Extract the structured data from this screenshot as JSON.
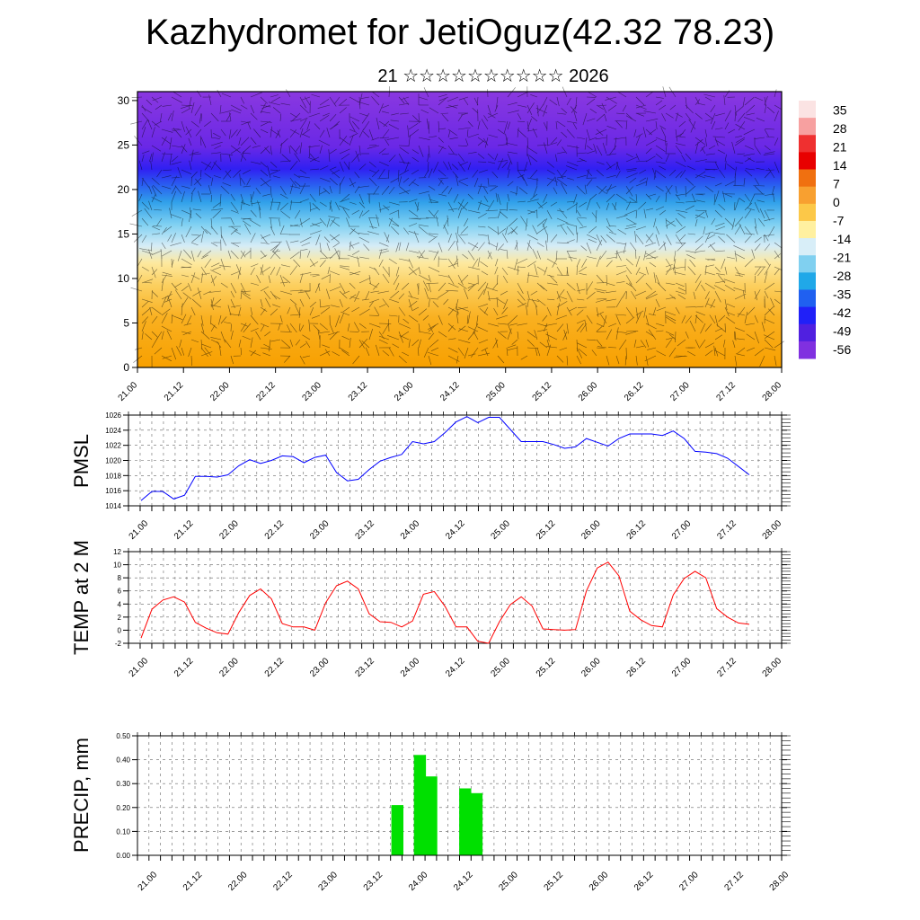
{
  "page": {
    "title": "Kazhydromet for JetiOguz(42.32 78.23)",
    "subtitle": "21 ☆☆☆☆☆☆☆☆☆☆ 2026"
  },
  "chart_data": [
    {
      "type": "heatmap",
      "xlabel": "",
      "ylabel": "",
      "x_tick_labels": [
        "21.00",
        "21.12",
        "22.00",
        "22.12",
        "23.00",
        "23.12",
        "24.00",
        "24.12",
        "25.00",
        "25.12",
        "26.00",
        "26.12",
        "27.00",
        "27.12",
        "28.00"
      ],
      "ylim": [
        0,
        31
      ],
      "y_ticks": [
        0,
        5,
        10,
        15,
        20,
        25,
        30
      ],
      "colorbar": {
        "labels": [
          "35",
          "28",
          "21",
          "14",
          "7",
          "0",
          "-7",
          "-14",
          "-21",
          "-28",
          "-35",
          "-42",
          "-49",
          "-56"
        ],
        "colors": [
          "#fbe3e3",
          "#f7a0a0",
          "#ef3030",
          "#e80000",
          "#f07010",
          "#f8a030",
          "#fcc848",
          "#fff0a0",
          "#d8eef8",
          "#80d0f0",
          "#20a8e8",
          "#2060f0",
          "#2020f8",
          "#5020e0",
          "#8030e0"
        ]
      }
    },
    {
      "type": "line",
      "ylabel": "PMSL",
      "ylim": [
        1014,
        1026
      ],
      "y_ticks": [
        1014,
        1016,
        1018,
        1020,
        1022,
        1024,
        1026
      ],
      "color": "#0000ff",
      "x_tick_labels": [
        "21.00",
        "21.12",
        "22.00",
        "22.12",
        "23.00",
        "23.12",
        "24.00",
        "24.12",
        "25.00",
        "25.12",
        "26.00",
        "26.12",
        "27.00",
        "27.12",
        "28.00"
      ],
      "values": [
        1014.7,
        1015.9,
        1015.9,
        1014.9,
        1015.4,
        1017.9,
        1017.9,
        1017.8,
        1018.1,
        1019.3,
        1020.1,
        1019.6,
        1020.0,
        1020.6,
        1020.5,
        1019.7,
        1020.4,
        1020.7,
        1018.4,
        1017.3,
        1017.5,
        1018.8,
        1019.9,
        1020.4,
        1020.8,
        1022.5,
        1022.2,
        1022.5,
        1023.7,
        1025.1,
        1025.8,
        1025.0,
        1025.7,
        1025.7,
        1024.1,
        1022.5,
        1022.5,
        1022.5,
        1022.1,
        1021.6,
        1021.8,
        1022.9,
        1022.4,
        1021.9,
        1022.9,
        1023.5,
        1023.5,
        1023.5,
        1023.3,
        1023.9,
        1022.9,
        1021.2,
        1021.1,
        1020.9,
        1020.3,
        1019.2,
        1018.1
      ]
    },
    {
      "type": "line",
      "ylabel": "TEMP at 2 M",
      "ylim": [
        -2,
        12
      ],
      "y_ticks": [
        -2,
        0,
        2,
        4,
        6,
        8,
        10,
        12
      ],
      "color": "#ff0000",
      "x_tick_labels": [
        "21.00",
        "21.12",
        "22.00",
        "22.12",
        "23.00",
        "23.12",
        "24.00",
        "24.12",
        "25.00",
        "25.12",
        "26.00",
        "26.12",
        "27.00",
        "27.12",
        "28.00"
      ],
      "values": [
        -1.2,
        3.2,
        4.6,
        5.1,
        4.3,
        1.2,
        0.3,
        -0.4,
        -0.6,
        2.7,
        5.3,
        6.3,
        4.8,
        1.0,
        0.5,
        0.5,
        0.0,
        4.2,
        6.8,
        7.5,
        6.3,
        2.5,
        1.3,
        1.2,
        0.5,
        1.4,
        5.5,
        5.9,
        3.6,
        0.5,
        0.5,
        -1.7,
        -2.0,
        1.3,
        3.9,
        5.1,
        3.7,
        0.2,
        0.1,
        0.0,
        0.1,
        6.0,
        9.5,
        10.4,
        8.3,
        2.9,
        1.6,
        0.7,
        0.5,
        5.4,
        7.9,
        9.0,
        8.0,
        3.3,
        2.0,
        1.1,
        0.9
      ]
    },
    {
      "type": "bar",
      "ylabel": "PRECIP, mm",
      "ylim": [
        0,
        0.5
      ],
      "y_ticks": [
        "0.00",
        "0.10",
        "0.20",
        "0.30",
        "0.40",
        "0.50"
      ],
      "color": "#00e000",
      "x_tick_labels": [
        "21.00",
        "21.12",
        "22.00",
        "22.12",
        "23.00",
        "23.12",
        "24.00",
        "24.12",
        "25.00",
        "25.12",
        "26.00",
        "26.12",
        "27.00",
        "27.12",
        "28.00"
      ],
      "bars": [
        {
          "x": 23.75,
          "value": 0.21
        },
        {
          "x": 24.0,
          "value": 0.42
        },
        {
          "x": 24.125,
          "value": 0.33
        },
        {
          "x": 24.5,
          "value": 0.28
        },
        {
          "x": 24.625,
          "value": 0.26
        }
      ]
    }
  ]
}
